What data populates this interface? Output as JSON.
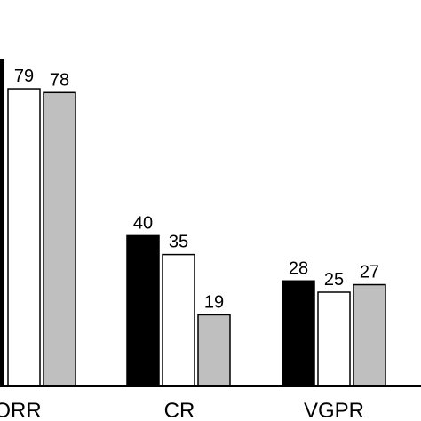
{
  "chart_data": {
    "type": "bar",
    "categories": [
      "ORR",
      "CR",
      "VGPR"
    ],
    "series": [
      {
        "values": [
          null,
          40,
          28
        ],
        "color": "#000000"
      },
      {
        "values": [
          79,
          35,
          25
        ],
        "color": "#ffffff"
      },
      {
        "values": [
          78,
          19,
          27
        ],
        "color": "#bfbfbf"
      }
    ],
    "data_labels": [
      [
        "",
        "79",
        "78"
      ],
      [
        "40",
        "35",
        "19"
      ],
      [
        "28",
        "25",
        "27"
      ]
    ],
    "ylim": [
      0,
      100
    ],
    "grid": false,
    "title": "",
    "xlabel": "",
    "ylabel": ""
  }
}
